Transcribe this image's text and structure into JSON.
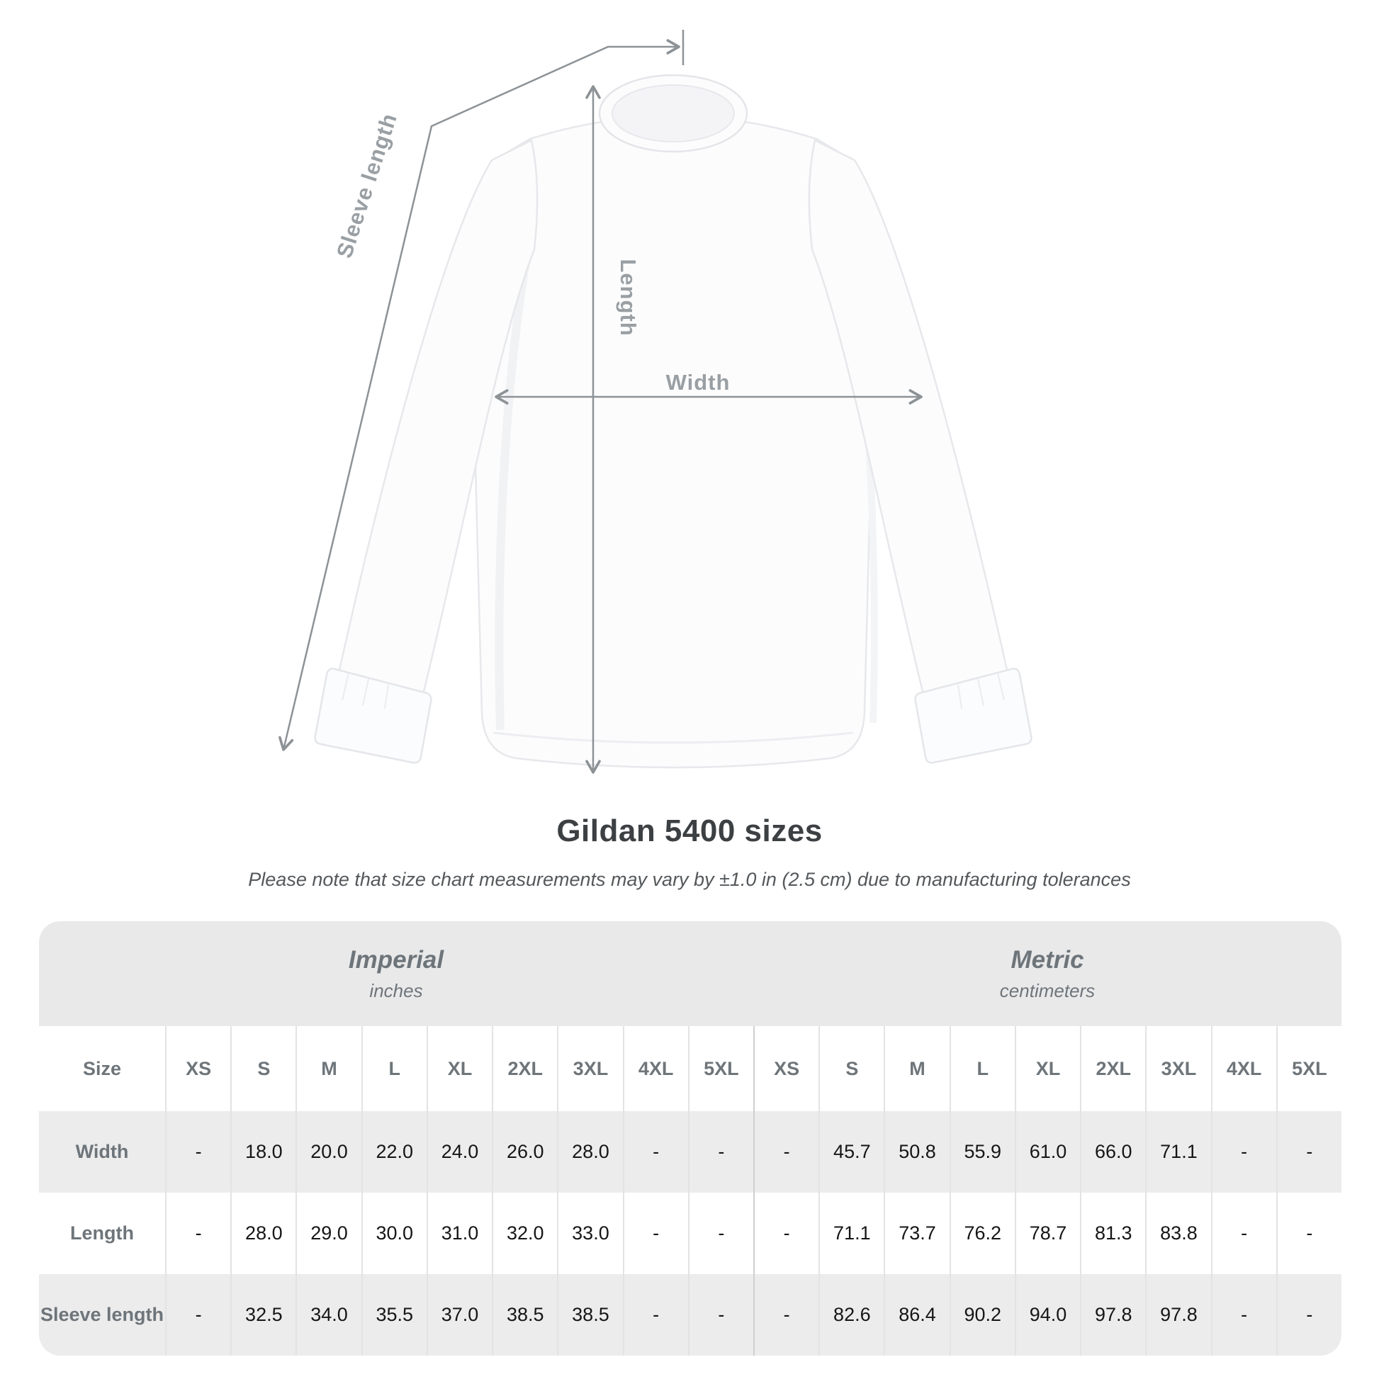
{
  "colors": {
    "line_gray": "#8c9296",
    "diagram_label_gray": "#999fa3",
    "title_color": "#3c4043",
    "subtitle_color": "#54585b",
    "table_band_bg": "#e9e9ea",
    "table_row_alt_bg": "#ececed",
    "table_header_text": "#6e757a",
    "table_value_text": "#161616",
    "cell_divider": "#e3e3e4",
    "group_divider": "#cfcfd1"
  },
  "diagram": {
    "sleeve_length_label": "Sleeve length",
    "length_label": "Length",
    "width_label": "Width"
  },
  "title": "Gildan 5400 sizes",
  "subtitle": "Please note that size chart measurements may vary by ±1.0 in (2.5 cm) due to manufacturing tolerances",
  "table": {
    "size_header_label": "Size",
    "sizes": [
      "XS",
      "S",
      "M",
      "L",
      "XL",
      "2XL",
      "3XL",
      "4XL",
      "5XL"
    ],
    "unit_groups": [
      {
        "name": "Imperial",
        "unit": "inches"
      },
      {
        "name": "Metric",
        "unit": "centimeters"
      }
    ],
    "rows": [
      {
        "label": "Width",
        "imperial": [
          "-",
          "18.0",
          "20.0",
          "22.0",
          "24.0",
          "26.0",
          "28.0",
          "-",
          "-"
        ],
        "metric": [
          "-",
          "45.7",
          "50.8",
          "55.9",
          "61.0",
          "66.0",
          "71.1",
          "-",
          "-"
        ]
      },
      {
        "label": "Length",
        "imperial": [
          "-",
          "28.0",
          "29.0",
          "30.0",
          "31.0",
          "32.0",
          "33.0",
          "-",
          "-"
        ],
        "metric": [
          "-",
          "71.1",
          "73.7",
          "76.2",
          "78.7",
          "81.3",
          "83.8",
          "-",
          "-"
        ]
      },
      {
        "label": "Sleeve length",
        "imperial": [
          "-",
          "32.5",
          "34.0",
          "35.5",
          "37.0",
          "38.5",
          "38.5",
          "-",
          "-"
        ],
        "metric": [
          "-",
          "82.6",
          "86.4",
          "90.2",
          "94.0",
          "97.8",
          "97.8",
          "-",
          "-"
        ]
      }
    ]
  },
  "chart_data": {
    "type": "table",
    "title": "Gildan 5400 sizes",
    "note": "Please note that size chart measurements may vary by ±1.0 in (2.5 cm) due to manufacturing tolerances",
    "columns": [
      "Size",
      "XS",
      "S",
      "M",
      "L",
      "XL",
      "2XL",
      "3XL",
      "4XL",
      "5XL"
    ],
    "units": {
      "imperial": "inches",
      "metric": "centimeters"
    },
    "imperial_rows": [
      [
        "Width",
        "-",
        "18.0",
        "20.0",
        "22.0",
        "24.0",
        "26.0",
        "28.0",
        "-",
        "-"
      ],
      [
        "Length",
        "-",
        "28.0",
        "29.0",
        "30.0",
        "31.0",
        "32.0",
        "33.0",
        "-",
        "-"
      ],
      [
        "Sleeve length",
        "-",
        "32.5",
        "34.0",
        "35.5",
        "37.0",
        "38.5",
        "38.5",
        "-",
        "-"
      ]
    ],
    "metric_rows": [
      [
        "Width",
        "-",
        "45.7",
        "50.8",
        "55.9",
        "61.0",
        "66.0",
        "71.1",
        "-",
        "-"
      ],
      [
        "Length",
        "-",
        "71.1",
        "73.7",
        "76.2",
        "78.7",
        "81.3",
        "83.8",
        "-",
        "-"
      ],
      [
        "Sleeve length",
        "-",
        "82.6",
        "86.4",
        "90.2",
        "94.0",
        "97.8",
        "97.8",
        "-",
        "-"
      ]
    ]
  }
}
